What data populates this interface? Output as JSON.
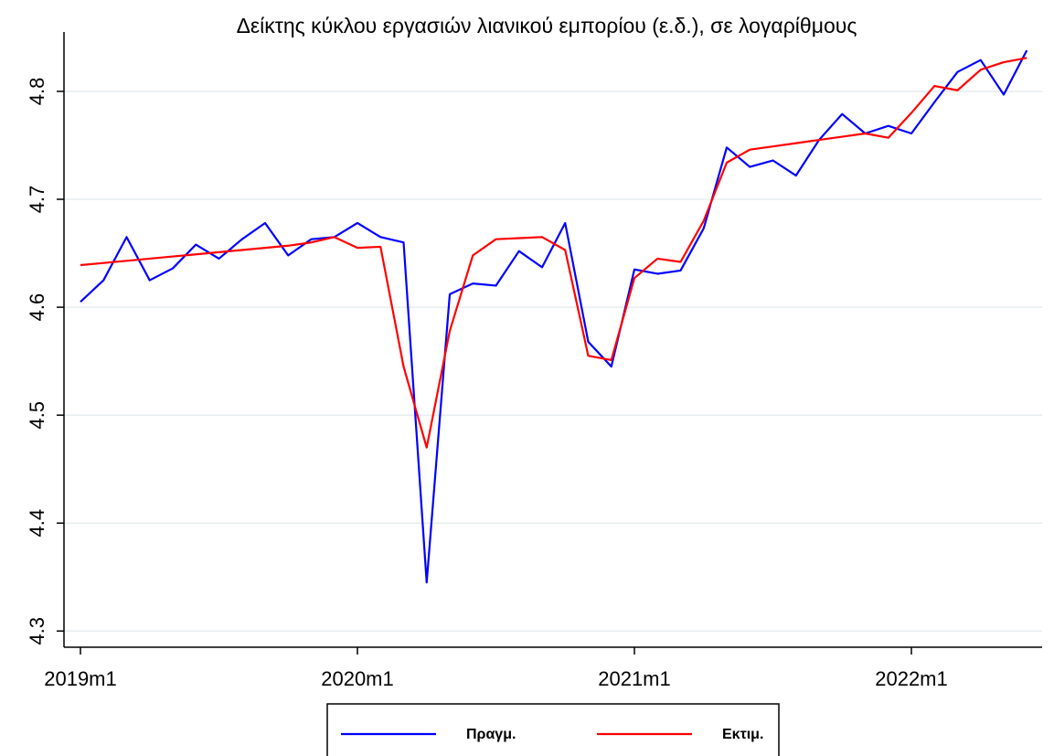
{
  "chart_data": {
    "type": "line",
    "title": "Δείκτης κύκλου εργασιών λιανικού εμπορίου (ε.δ.), σε λογαρίθμους",
    "categories": [
      "2019m1",
      null,
      null,
      null,
      null,
      null,
      null,
      null,
      null,
      null,
      null,
      null,
      "2020m1",
      null,
      null,
      null,
      null,
      null,
      null,
      null,
      null,
      null,
      null,
      null,
      "2021m1",
      null,
      null,
      null,
      null,
      null,
      null,
      null,
      null,
      null,
      null,
      null,
      "2022m1",
      null,
      null,
      null,
      null,
      null
    ],
    "series": [
      {
        "name": "Πραγμ.",
        "color": "#0000ff",
        "values": [
          4.605,
          4.625,
          4.665,
          4.625,
          4.636,
          4.658,
          4.645,
          4.663,
          4.678,
          4.648,
          4.663,
          4.665,
          4.678,
          4.665,
          4.66,
          4.345,
          4.612,
          4.622,
          4.62,
          4.652,
          4.637,
          4.678,
          4.568,
          4.545,
          4.635,
          4.631,
          4.634,
          4.673,
          4.748,
          4.73,
          4.736,
          4.722,
          4.755,
          4.779,
          4.761,
          4.768,
          4.761,
          4.79,
          4.818,
          4.829,
          4.797,
          4.838
        ]
      },
      {
        "name": "Εκτιμ.",
        "color": "#ff0000",
        "values": [
          4.639,
          4.641,
          4.643,
          4.645,
          4.647,
          4.649,
          4.651,
          4.653,
          4.655,
          4.657,
          4.66,
          4.665,
          4.655,
          4.656,
          4.545,
          4.47,
          4.578,
          4.648,
          4.663,
          4.664,
          4.665,
          4.653,
          4.555,
          4.551,
          4.627,
          4.645,
          4.642,
          4.68,
          4.734,
          4.746,
          4.749,
          4.752,
          4.755,
          4.758,
          4.761,
          4.757,
          4.78,
          4.805,
          4.801,
          4.82,
          4.827,
          4.831
        ]
      }
    ],
    "ylim": [
      4.285,
      4.855
    ],
    "yticks": [
      4.3,
      4.4,
      4.5,
      4.6,
      4.7,
      4.8
    ],
    "grid": true,
    "legend": "bottom"
  }
}
